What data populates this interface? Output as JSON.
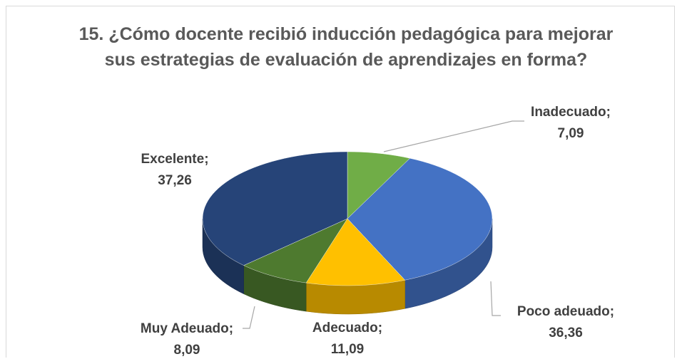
{
  "chart_data": {
    "type": "pie",
    "title": "15. ¿Cómo docente recibió inducción pedagógica para mejorar sus estrategias de evaluación de aprendizajes en forma?",
    "categories": [
      "Inadecuado;",
      "Poco adeuado;",
      "Adecuado;",
      "Muy Adeuado;",
      "Excelente;"
    ],
    "values": [
      7.09,
      36.36,
      11.09,
      8.09,
      37.26
    ],
    "value_labels": [
      "7,09",
      "36,36",
      "11,09",
      "8,09",
      "37,26"
    ],
    "colors": [
      "#70ad47",
      "#4472c4",
      "#ffc000",
      "#4e7a2f",
      "#264478"
    ]
  }
}
